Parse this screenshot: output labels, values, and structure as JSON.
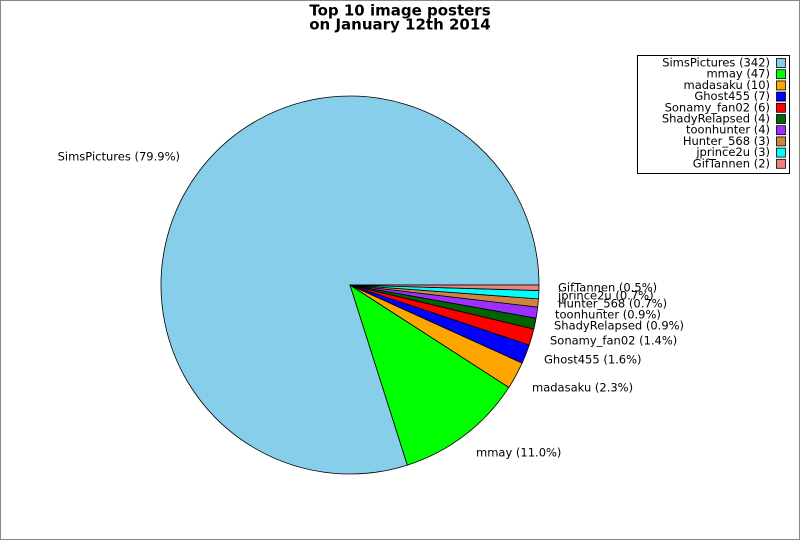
{
  "chart_data": {
    "type": "pie",
    "title": [
      "Top 10 image posters",
      "on January 12th 2014"
    ],
    "categories": [
      "SimsPictures",
      "mmay",
      "madasaku",
      "Ghost455",
      "Sonamy_fan02",
      "ShadyRelapsed",
      "toonhunter",
      "Hunter_568",
      "jprince2u",
      "GifTannen"
    ],
    "values": [
      342,
      47,
      10,
      7,
      6,
      4,
      4,
      3,
      3,
      2
    ],
    "legend_labels": [
      "SimsPictures (342)",
      "mmay (47)",
      "madasaku (10)",
      "Ghost455 (7)",
      "Sonamy_fan02 (6)",
      "ShadyRelapsed (4)",
      "toonhunter (4)",
      "Hunter_568 (3)",
      "jprince2u (3)",
      "GifTannen (2)"
    ],
    "value_labels": [
      "SimsPictures (79.9%)",
      "mmay (11.0%)",
      "madasaku (2.3%)",
      "Ghost455 (1.6%)",
      "Sonamy_fan02 (1.4%)",
      "ShadyRelapsed (0.9%)",
      "toonhunter (0.9%)",
      "Hunter_568 (0.7%)",
      "jprince2u (0.7%)",
      "GifTannen (0.5%)"
    ],
    "colors": [
      "#87ceeb",
      "#00ff00",
      "#ffa500",
      "#0000ff",
      "#ff0000",
      "#006400",
      "#9b30ff",
      "#cd853f",
      "#00ffff",
      "#f08080"
    ],
    "legend": "upper right"
  }
}
